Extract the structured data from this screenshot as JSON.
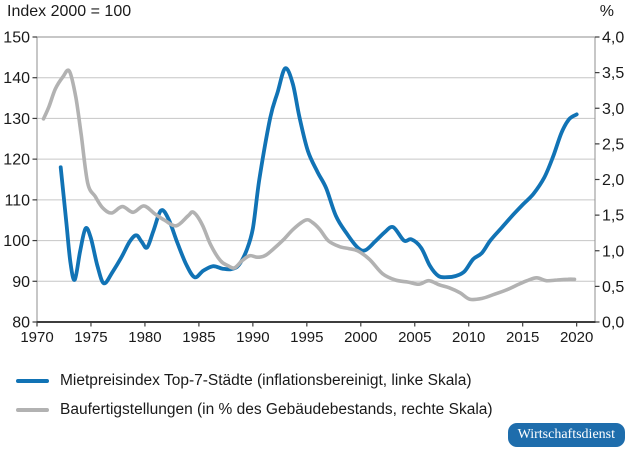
{
  "legend": {
    "items": [
      {
        "label": "Mietpreisindex Top-7-Städte (inflationsbereinigt, linke Skala)",
        "color": "#1173b5"
      },
      {
        "label": "Baufertigstellungen (in % des Gebäudebestands, rechte Skala)",
        "color": "#b2b2b2"
      }
    ]
  },
  "badge": {
    "label": "Wirtschaftsdienst",
    "bg": "#1e6dac",
    "text_color": "#ffffff"
  },
  "style": {
    "grid_color": "#c6c6c6",
    "border_color": "#8f8f8f",
    "axis_color": "#3d3d3d",
    "text_color": "#1a1a1a"
  },
  "chart_data": {
    "type": "line",
    "title": "Index 2000 = 100",
    "grid": true,
    "legend_position": "bottom",
    "x_axis": {
      "min": 1970,
      "max": 2021.7,
      "ticks": [
        1970,
        1975,
        1980,
        1985,
        1990,
        1995,
        2000,
        2005,
        2010,
        2015,
        2020
      ]
    },
    "left_axis": {
      "title": "Index 2000 = 100",
      "min": 80,
      "max": 150,
      "ticks": [
        150,
        140,
        130,
        120,
        110,
        100,
        90,
        80
      ]
    },
    "right_axis": {
      "title": "%",
      "min": 0,
      "max": 4,
      "tick_values": [
        4,
        3.5,
        3,
        2.5,
        2,
        1.5,
        1,
        0.5,
        0
      ],
      "tick_labels": [
        "4,0",
        "3,5",
        "3,0",
        "2,5",
        "2,0",
        "1,5",
        "1,0",
        "0,5",
        "0,0"
      ]
    },
    "series": [
      {
        "name": "Mietpreisindex Top-7-Städte (inflationsbereinigt, linke Skala)",
        "axis": "left",
        "color": "#1173b5",
        "stroke_width": 3.8,
        "points": [
          [
            1972.2,
            118
          ],
          [
            1972.7,
            105
          ],
          [
            1973.1,
            94.5
          ],
          [
            1973.5,
            90.4
          ],
          [
            1974,
            97.5
          ],
          [
            1974.5,
            103
          ],
          [
            1975,
            100.5
          ],
          [
            1975.6,
            93.8
          ],
          [
            1976.2,
            89.5
          ],
          [
            1977,
            92.3
          ],
          [
            1977.8,
            95.8
          ],
          [
            1978.6,
            99.8
          ],
          [
            1979.2,
            101.3
          ],
          [
            1979.7,
            99.7
          ],
          [
            1980.2,
            98.3
          ],
          [
            1980.8,
            102.5
          ],
          [
            1981.5,
            107.4
          ],
          [
            1982.2,
            105.2
          ],
          [
            1983,
            99.5
          ],
          [
            1983.8,
            94.3
          ],
          [
            1984.6,
            91
          ],
          [
            1985.4,
            92.6
          ],
          [
            1986.3,
            93.7
          ],
          [
            1987.2,
            93.1
          ],
          [
            1988,
            93
          ],
          [
            1988.7,
            94
          ],
          [
            1989.4,
            97.5
          ],
          [
            1990,
            103
          ],
          [
            1990.6,
            115
          ],
          [
            1991.6,
            130
          ],
          [
            1992.3,
            136.5
          ],
          [
            1993,
            142.3
          ],
          [
            1993.7,
            138.5
          ],
          [
            1994.3,
            130.5
          ],
          [
            1995.1,
            122
          ],
          [
            1996,
            116.8
          ],
          [
            1996.8,
            112.8
          ],
          [
            1997.7,
            106
          ],
          [
            1998.7,
            101.7
          ],
          [
            1999.7,
            98.3
          ],
          [
            2000.4,
            97.6
          ],
          [
            2001.3,
            99.7
          ],
          [
            2002.2,
            102
          ],
          [
            2003,
            103.3
          ],
          [
            2004,
            100
          ],
          [
            2004.7,
            100.3
          ],
          [
            2005.6,
            98.2
          ],
          [
            2006.4,
            93.8
          ],
          [
            2007.2,
            91.3
          ],
          [
            2008,
            91
          ],
          [
            2008.8,
            91.3
          ],
          [
            2009.6,
            92.4
          ],
          [
            2010.4,
            95.4
          ],
          [
            2011.2,
            96.9
          ],
          [
            2012,
            100
          ],
          [
            2013,
            103
          ],
          [
            2014,
            106
          ],
          [
            2015,
            108.8
          ],
          [
            2016,
            111.5
          ],
          [
            2017,
            115.5
          ],
          [
            2017.8,
            120.5
          ],
          [
            2018.6,
            126.5
          ],
          [
            2019.3,
            129.8
          ],
          [
            2020,
            131
          ]
        ]
      },
      {
        "name": "Baufertigstellungen (in % des Gebäudebestands, rechte Skala)",
        "axis": "right",
        "color": "#b2b2b2",
        "stroke_width": 3.6,
        "points": [
          [
            1970.6,
            2.85
          ],
          [
            1971.1,
            3.02
          ],
          [
            1971.7,
            3.27
          ],
          [
            1972.4,
            3.44
          ],
          [
            1973,
            3.52
          ],
          [
            1973.6,
            3.15
          ],
          [
            1974.1,
            2.62
          ],
          [
            1974.7,
            1.95
          ],
          [
            1975.4,
            1.76
          ],
          [
            1976.1,
            1.6
          ],
          [
            1976.9,
            1.53
          ],
          [
            1977.9,
            1.62
          ],
          [
            1978.9,
            1.54
          ],
          [
            1979.9,
            1.63
          ],
          [
            1980.9,
            1.52
          ],
          [
            1981.8,
            1.43
          ],
          [
            1982.9,
            1.35
          ],
          [
            1984,
            1.49
          ],
          [
            1984.5,
            1.54
          ],
          [
            1985.3,
            1.37
          ],
          [
            1986.1,
            1.08
          ],
          [
            1987,
            0.86
          ],
          [
            1987.7,
            0.79
          ],
          [
            1988.3,
            0.76
          ],
          [
            1989,
            0.86
          ],
          [
            1989.7,
            0.93
          ],
          [
            1990.4,
            0.91
          ],
          [
            1991.1,
            0.93
          ],
          [
            1991.8,
            1.01
          ],
          [
            1992.8,
            1.15
          ],
          [
            1993.8,
            1.31
          ],
          [
            1994.9,
            1.43
          ],
          [
            1995.5,
            1.4
          ],
          [
            1996.2,
            1.3
          ],
          [
            1997,
            1.14
          ],
          [
            1998,
            1.06
          ],
          [
            1998.9,
            1.03
          ],
          [
            1999.7,
            1
          ],
          [
            2000.8,
            0.88
          ],
          [
            2002,
            0.68
          ],
          [
            2003.2,
            0.59
          ],
          [
            2004.4,
            0.56
          ],
          [
            2005.4,
            0.53
          ],
          [
            2006.3,
            0.58
          ],
          [
            2007.3,
            0.52
          ],
          [
            2008.2,
            0.48
          ],
          [
            2009.2,
            0.41
          ],
          [
            2010.1,
            0.32
          ],
          [
            2011.2,
            0.33
          ],
          [
            2012.4,
            0.39
          ],
          [
            2013.5,
            0.45
          ],
          [
            2014.5,
            0.52
          ],
          [
            2015.4,
            0.58
          ],
          [
            2016.3,
            0.62
          ],
          [
            2017.2,
            0.58
          ],
          [
            2018.2,
            0.59
          ],
          [
            2019.2,
            0.6
          ],
          [
            2019.8,
            0.6
          ]
        ]
      }
    ]
  }
}
